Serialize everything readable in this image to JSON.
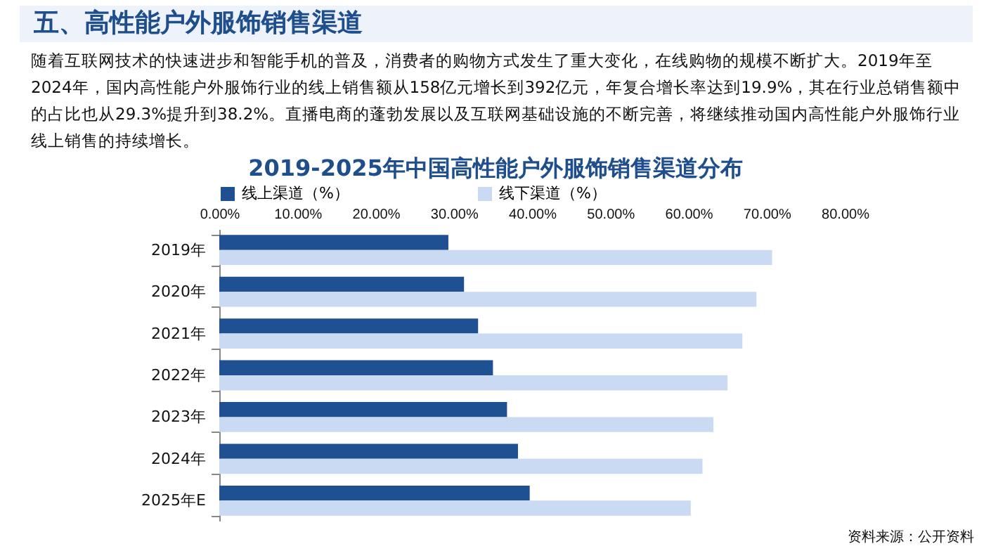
{
  "chart_data": {
    "type": "bar",
    "orientation": "horizontal",
    "title": "2019-2025年中国高性能户外服饰销售渠道分布",
    "annotations": [
      "五、高性能户外服饰销售渠道",
      "随着互联网技术的快速进步和智能手机的普及，消费者的购物方式发生了重大变化，在线购物的规模不断扩大。2019年至2024年，国内高性能户外服饰行业的线上销售额从158亿元增长到392亿元，年复合增长率达到19.9%，其在行业总销售额中的占比也从29.3%提升到38.2%。直播电商的蓬勃发展以及互联网基础设施的不断完善，将继续推动国内高性能户外服饰行业线上销售的持续增长。",
      "资料来源：公开资料"
    ],
    "categories": [
      "2019年",
      "2020年",
      "2021年",
      "2022年",
      "2023年",
      "2024年",
      "2025年E"
    ],
    "series": [
      {
        "name": "线上渠道（%）",
        "color": "#1f5192",
        "values": [
          29.3,
          31.3,
          33.1,
          35.0,
          36.8,
          38.2,
          39.7
        ]
      },
      {
        "name": "线下渠道（%）",
        "color": "#c9daf2",
        "values": [
          70.7,
          68.7,
          66.9,
          65.0,
          63.2,
          61.8,
          60.3
        ]
      }
    ],
    "xlim": [
      0,
      80
    ],
    "xticks": [
      {
        "value": 0,
        "label": "0.00%"
      },
      {
        "value": 10,
        "label": "10.00%"
      },
      {
        "value": 20,
        "label": "20.00%"
      },
      {
        "value": 30,
        "label": "30.00%"
      },
      {
        "value": 40,
        "label": "40.00%"
      },
      {
        "value": 50,
        "label": "50.00%"
      },
      {
        "value": 60,
        "label": "60.00%"
      },
      {
        "value": 70,
        "label": "70.00%"
      },
      {
        "value": 80,
        "label": "80.00%"
      }
    ],
    "legend": "top"
  }
}
